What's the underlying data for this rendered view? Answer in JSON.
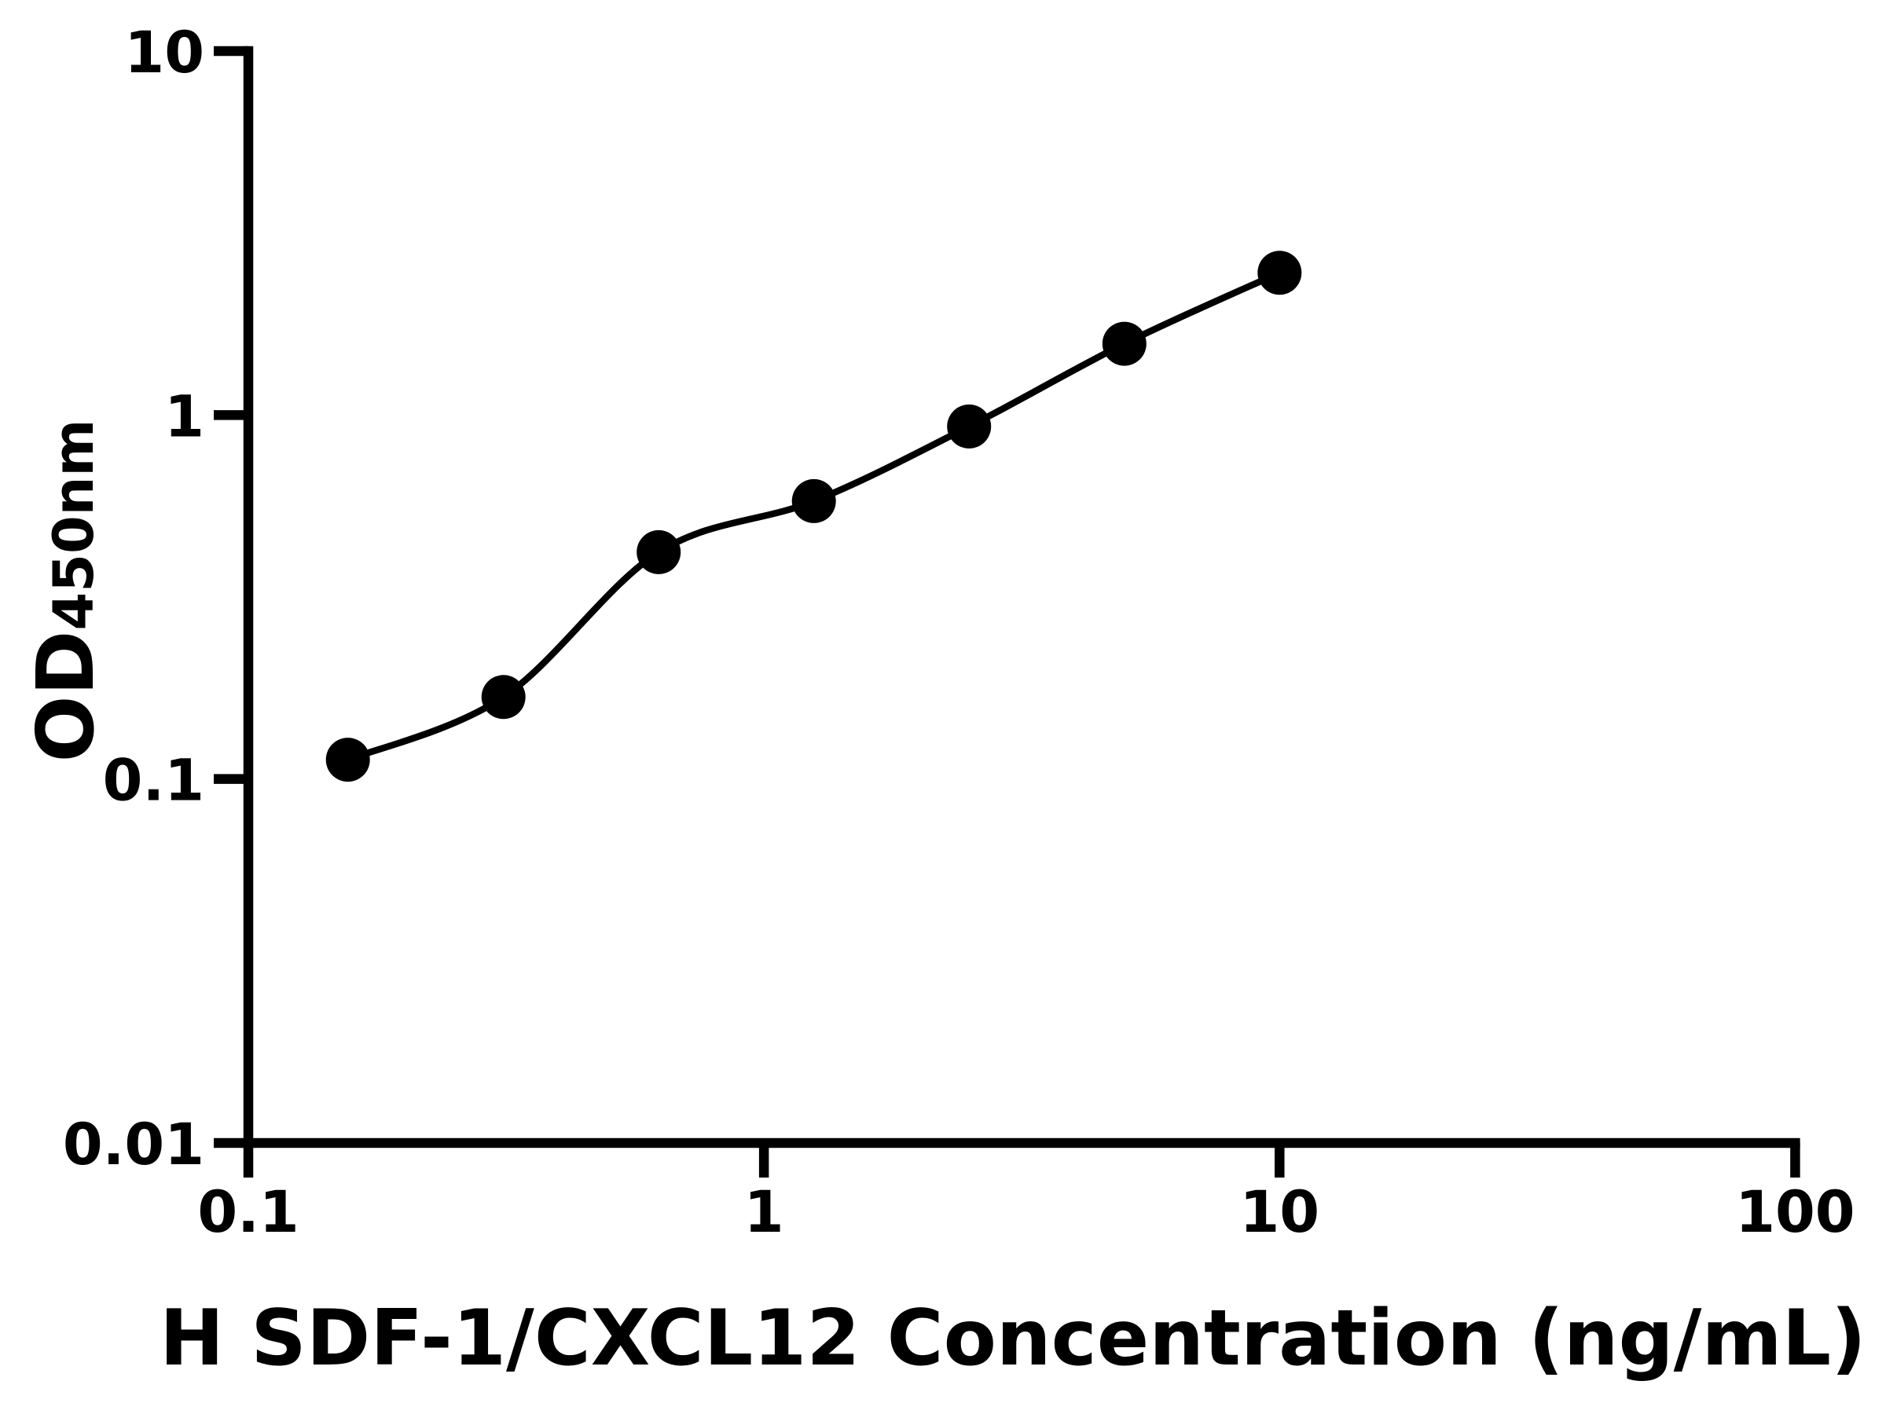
{
  "chart_data": {
    "type": "scatter",
    "title": "",
    "xlabel": "H SDF-1/CXCL12 Concentration (ng/mL)",
    "ylabel": "OD450nm",
    "ylabel_main": "OD",
    "ylabel_sub": "450nm",
    "xscale": "log",
    "yscale": "log",
    "xlim": [
      0.1,
      100
    ],
    "ylim": [
      0.01,
      10
    ],
    "xticks": {
      "values": [
        0.1,
        1,
        10,
        100
      ],
      "labels": [
        "0.1",
        "1",
        "10",
        "100"
      ]
    },
    "yticks": {
      "values": [
        10,
        1,
        0.1,
        0.01
      ],
      "labels": [
        "10",
        "1",
        "0.1",
        "0.01"
      ]
    },
    "grid": false,
    "legend": false,
    "series": [
      {
        "marker": "filled-circle",
        "color": "#000000",
        "x": [
          0.156,
          0.3125,
          0.625,
          1.25,
          2.5,
          5,
          10
        ],
        "y": [
          0.113,
          0.168,
          0.42,
          0.58,
          0.93,
          1.57,
          2.46
        ]
      }
    ]
  },
  "colors": {
    "foreground": "#000000",
    "background": "#ffffff"
  }
}
